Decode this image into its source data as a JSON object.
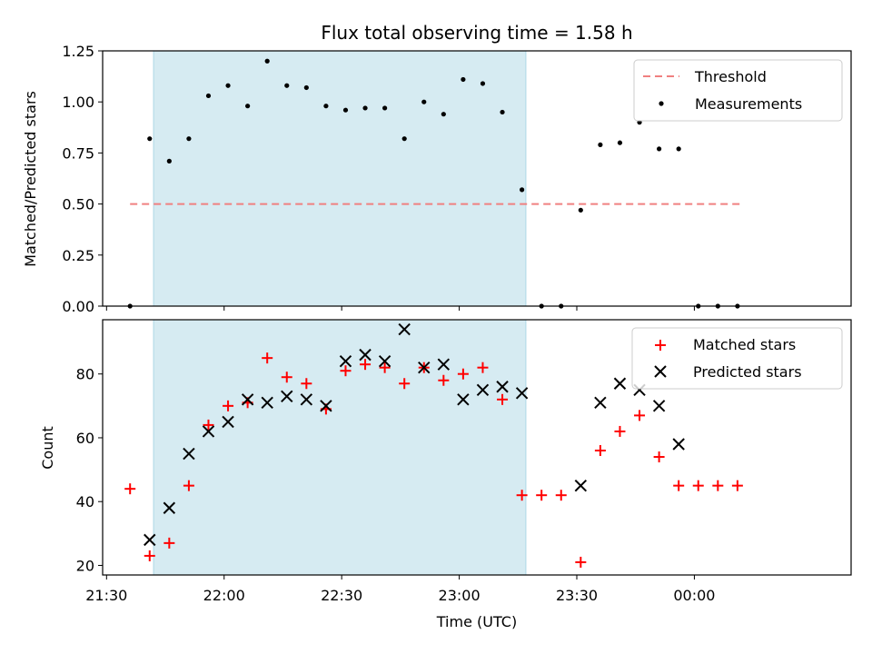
{
  "chart_data": {
    "title": "Flux total observing time = 1.58 h",
    "xlabel": "Time (UTC)",
    "x_tick_labels": [
      "21:30",
      "22:00",
      "22:30",
      "23:00",
      "23:30",
      "00:00"
    ],
    "x_ticks": [
      "21:30",
      "22:00",
      "22:30",
      "23:00",
      "23:30",
      "00:00"
    ],
    "xlim": [
      "21:29",
      "00:40"
    ],
    "shaded_interval": {
      "start": "21:42",
      "end": "23:17",
      "color": "#add8e6"
    },
    "top": {
      "type": "scatter",
      "ylabel": "Matched/Predicted stars",
      "ylim": [
        0,
        1.25
      ],
      "y_ticks": [
        "0.00",
        "0.25",
        "0.50",
        "0.75",
        "1.00",
        "1.25"
      ],
      "legend_position": "upper right",
      "threshold": {
        "name": "Threshold",
        "value": 0.5,
        "x_start": "21:36",
        "x_end": "00:12",
        "color": "#f08080"
      },
      "series": [
        {
          "name": "Measurements",
          "color": "#000000",
          "x": [
            "21:36",
            "21:41",
            "21:46",
            "21:51",
            "21:56",
            "22:01",
            "22:06",
            "22:11",
            "22:16",
            "22:21",
            "22:26",
            "22:31",
            "22:36",
            "22:41",
            "22:46",
            "22:51",
            "22:56",
            "23:01",
            "23:06",
            "23:11",
            "23:16",
            "23:21",
            "23:26",
            "23:31",
            "23:36",
            "23:41",
            "23:46",
            "23:51",
            "23:56",
            "00:01",
            "00:06",
            "00:11"
          ],
          "y": [
            0.0,
            0.82,
            0.71,
            0.82,
            1.03,
            1.08,
            0.98,
            1.2,
            1.08,
            1.07,
            0.98,
            0.96,
            0.97,
            0.97,
            0.82,
            1.0,
            0.94,
            1.11,
            1.09,
            0.95,
            0.57,
            0.0,
            0.0,
            0.47,
            0.79,
            0.8,
            0.9,
            0.77,
            0.77,
            0.0,
            0.0,
            0.0
          ]
        }
      ]
    },
    "bottom": {
      "type": "scatter",
      "ylabel": "Count",
      "ylim": [
        17,
        97
      ],
      "y_ticks": [
        "20",
        "40",
        "60",
        "80"
      ],
      "legend_position": "upper right",
      "series": [
        {
          "name": "Matched stars",
          "marker": "+",
          "color": "#ff0000",
          "x": [
            "21:36",
            "21:41",
            "21:46",
            "21:51",
            "21:56",
            "22:01",
            "22:06",
            "22:11",
            "22:16",
            "22:21",
            "22:26",
            "22:31",
            "22:36",
            "22:41",
            "22:46",
            "22:51",
            "22:56",
            "23:01",
            "23:06",
            "23:11",
            "23:16",
            "23:21",
            "23:26",
            "23:31",
            "23:36",
            "23:41",
            "23:46",
            "23:51",
            "23:56",
            "00:01",
            "00:06",
            "00:11"
          ],
          "y": [
            44,
            23,
            27,
            45,
            64,
            70,
            71,
            85,
            79,
            77,
            69,
            81,
            83,
            82,
            77,
            82,
            78,
            80,
            82,
            72,
            42,
            42,
            42,
            21,
            56,
            62,
            67,
            54,
            45,
            45,
            45,
            45
          ]
        },
        {
          "name": "Predicted stars",
          "marker": "x",
          "color": "#000000",
          "x": [
            "21:41",
            "21:46",
            "21:51",
            "21:56",
            "22:01",
            "22:06",
            "22:11",
            "22:16",
            "22:21",
            "22:26",
            "22:31",
            "22:36",
            "22:41",
            "22:46",
            "22:51",
            "22:56",
            "23:01",
            "23:06",
            "23:11",
            "23:16",
            "23:31",
            "23:36",
            "23:41",
            "23:46",
            "23:51",
            "23:56"
          ],
          "y": [
            28,
            38,
            55,
            62,
            65,
            72,
            71,
            73,
            72,
            70,
            84,
            86,
            84,
            94,
            82,
            83,
            72,
            75,
            76,
            74,
            45,
            71,
            77,
            75,
            70,
            58
          ]
        }
      ]
    }
  }
}
